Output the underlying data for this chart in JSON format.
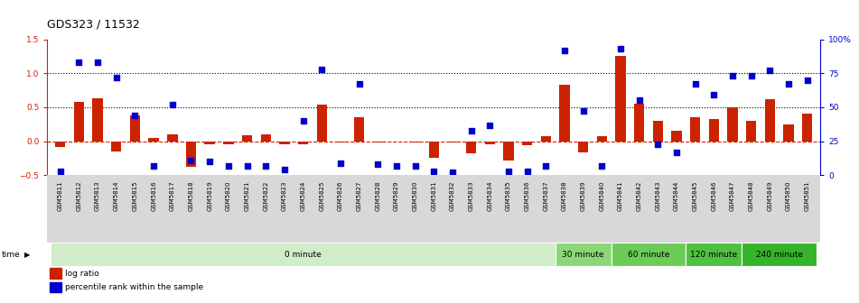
{
  "title": "GDS323 / 11532",
  "categories": [
    "GSM5811",
    "GSM5812",
    "GSM5813",
    "GSM5814",
    "GSM5815",
    "GSM5816",
    "GSM5817",
    "GSM5818",
    "GSM5819",
    "GSM5820",
    "GSM5821",
    "GSM5822",
    "GSM5823",
    "GSM5824",
    "GSM5825",
    "GSM5826",
    "GSM5827",
    "GSM5828",
    "GSM5829",
    "GSM5830",
    "GSM5831",
    "GSM5832",
    "GSM5833",
    "GSM5834",
    "GSM5835",
    "GSM5836",
    "GSM5837",
    "GSM5838",
    "GSM5839",
    "GSM5840",
    "GSM5841",
    "GSM5842",
    "GSM5843",
    "GSM5844",
    "GSM5845",
    "GSM5846",
    "GSM5847",
    "GSM5848",
    "GSM5849",
    "GSM5850",
    "GSM5851"
  ],
  "log_ratio": [
    -0.08,
    0.58,
    0.63,
    -0.15,
    0.38,
    0.05,
    0.1,
    -0.38,
    -0.05,
    -0.04,
    0.09,
    0.1,
    -0.05,
    -0.04,
    0.54,
    -0.02,
    0.35,
    -0.02,
    -0.01,
    -0.02,
    -0.25,
    -0.02,
    -0.18,
    -0.04,
    -0.28,
    -0.06,
    0.07,
    0.83,
    -0.16,
    0.08,
    1.25,
    0.55,
    0.3,
    0.15,
    0.35,
    0.32,
    0.5,
    0.3,
    0.62,
    0.25,
    0.4
  ],
  "percentile_pct": [
    3,
    83,
    83,
    72,
    44,
    7,
    52,
    11,
    10,
    7,
    7,
    7,
    4,
    40,
    78,
    9,
    67,
    8,
    7,
    7,
    3,
    2,
    33,
    37,
    3,
    3,
    7,
    92,
    47,
    7,
    93,
    55,
    23,
    17,
    67,
    59,
    73,
    73,
    77,
    67,
    70
  ],
  "time_groups": [
    {
      "label": "0 minute",
      "start": 0,
      "end": 27,
      "color": "#d0ecc8"
    },
    {
      "label": "30 minute",
      "start": 27,
      "end": 30,
      "color": "#8cd878"
    },
    {
      "label": "60 minute",
      "start": 30,
      "end": 34,
      "color": "#6ccc58"
    },
    {
      "label": "120 minute",
      "start": 34,
      "end": 37,
      "color": "#50c040"
    },
    {
      "label": "240 minute",
      "start": 37,
      "end": 41,
      "color": "#34b428"
    }
  ],
  "bar_color": "#cc2200",
  "dot_color": "#0000cc",
  "ylim_left": [
    -0.5,
    1.5
  ],
  "ylim_right": [
    0,
    100
  ],
  "yticks_left": [
    -0.5,
    0.0,
    0.5,
    1.0,
    1.5
  ],
  "yticks_right": [
    0,
    25,
    50,
    75,
    100
  ],
  "ytick_labels_right": [
    "0",
    "25",
    "50",
    "75",
    "100%"
  ],
  "hlines": [
    0.5,
    1.0
  ],
  "bar_width": 0.55,
  "background_color": "#ffffff",
  "ticklabel_bg": "#d8d8d8"
}
